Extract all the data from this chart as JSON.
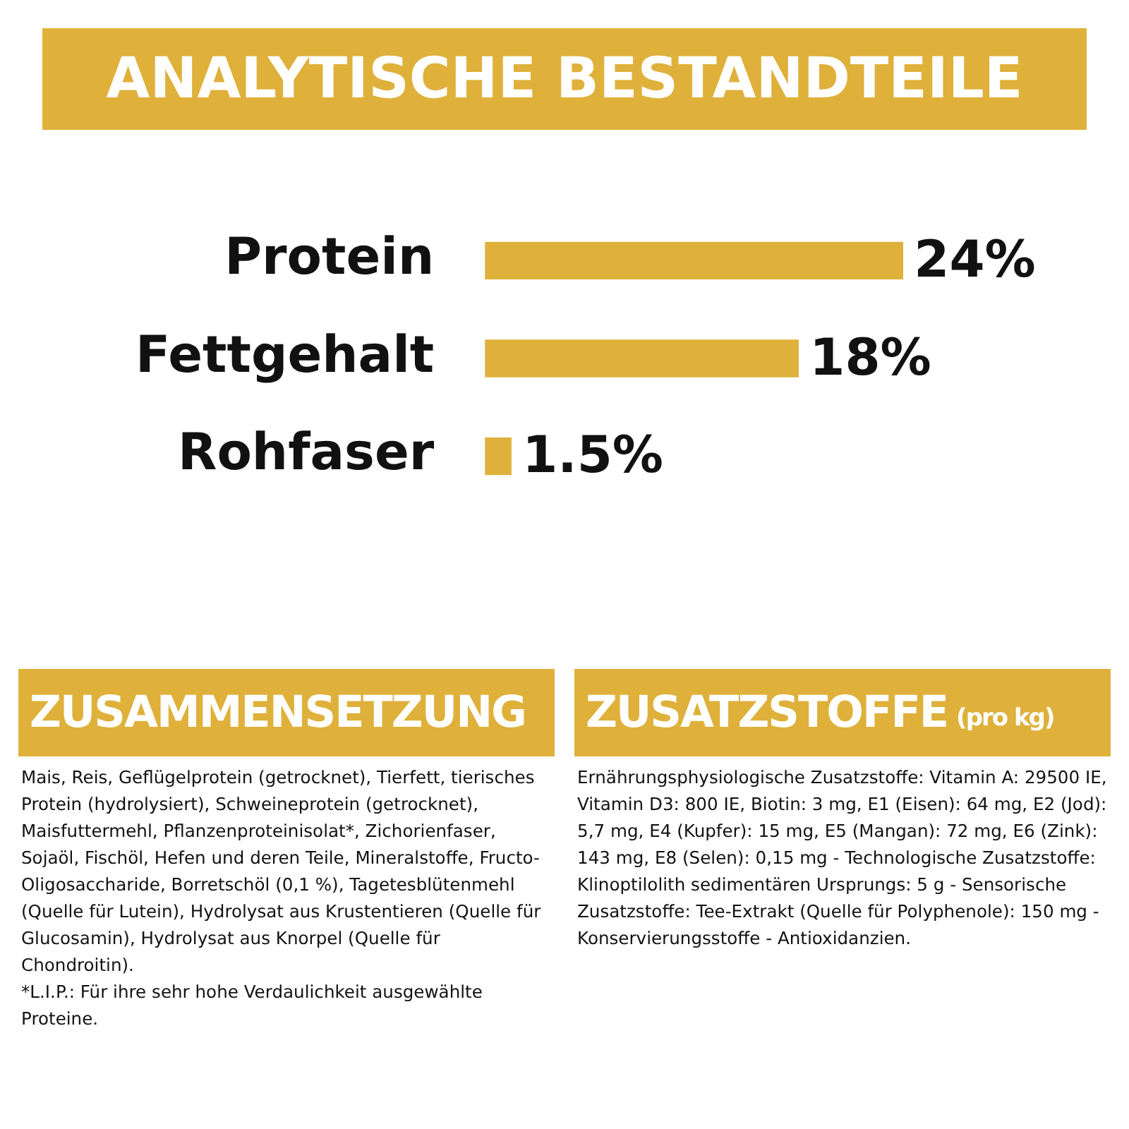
{
  "chart_data": [
    {
      "type": "bar",
      "orientation": "horizontal",
      "title": "ANALYTISCHE BESTANDTEILE",
      "categories": [
        "Protein",
        "Fettgehalt",
        "Rohfaser"
      ],
      "values": [
        24,
        18,
        1.5
      ],
      "value_labels": [
        "24%",
        "18%",
        "1.5%"
      ],
      "color": "#dfb13b"
    },
    {
      "type": "other",
      "title": "ZUSAMMENSETZUNG",
      "annotations": [
        "Mais, Reis, Geflügelprotein (getrocknet), Tierfett, tierisches Protein (hydrolysiert), Schweineprotein (getrocknet), Maisfuttermehl, Pflanzenproteinisolat*, Zichorienfaser, Sojaöl, Fischöl, Hefen und deren Teile, Mineralstoffe, Fructo-Oligosaccharide, Borretschöl (0,1 %), Tagetesblütenmehl (Quelle für Lutein), Hydrolysat aus Krustentieren (Quelle für Glucosamin), Hydrolysat aus Knorpel (Quelle für Chondroitin).",
        "*L.I.P.: Für ihre sehr hohe Verdaulichkeit ausgewählte Proteine."
      ]
    },
    {
      "type": "other",
      "title": "ZUSATZSTOFFE",
      "subtitle": "(pro kg)",
      "annotations": [
        "Ernährungsphysiologische Zusatzstoffe: Vitamin A: 29500 IE, Vitamin D3: 800 IE, Biotin: 3 mg, E1 (Eisen): 64 mg, E2 (Jod): 5,7 mg, E4 (Kupfer): 15 mg, E5 (Mangan): 72 mg, E6 (Zink): 143 mg, E8 (Selen): 0,15 mg - Technologische Zusatzstoffe: Klinoptilolith sedimentären Ursprungs: 5 g - Sensorische Zusatzstoffe: Tee-Extrakt (Quelle für Polyphenole): 150 mg - Konservierungsstoffe - Antioxidanzien."
      ]
    }
  ]
}
